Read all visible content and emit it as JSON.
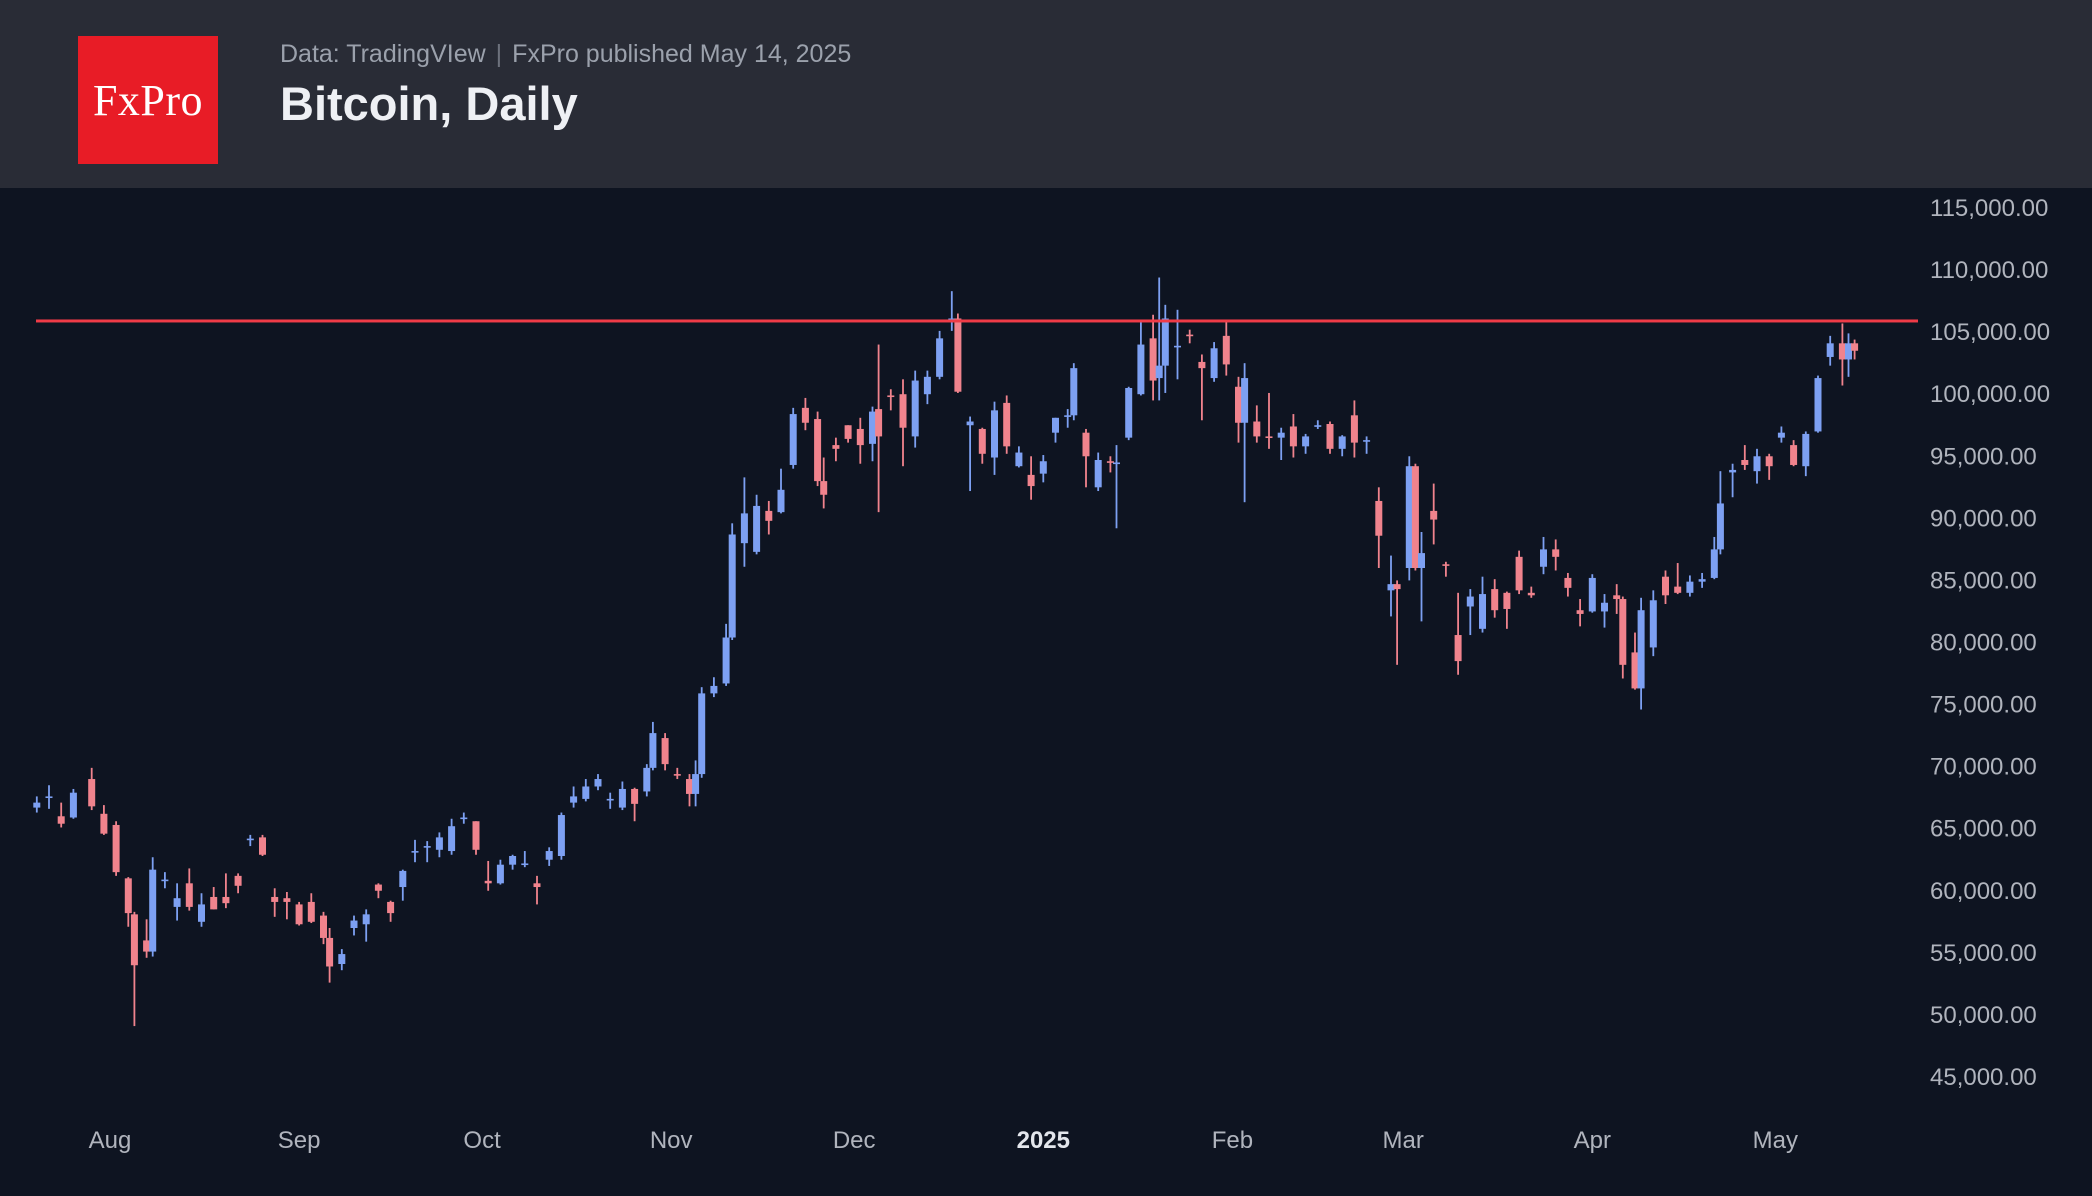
{
  "header": {
    "logo_text": "FxPro",
    "source_prefix": "Data: TradingVIew",
    "separator": "|",
    "published": "FxPro published May 14, 2025",
    "title": "Bitcoin, Daily"
  },
  "colors": {
    "header_bg": "#292c36",
    "chart_bg": "#0e1421",
    "logo_bg": "#e81c26",
    "up_candle": "#7da0f2",
    "down_candle": "#f0838d",
    "resistance_line": "#ef3b47",
    "axis_text": "#b0b4bd",
    "year_tick_text": "#e3e6ec",
    "title_text": "#eef0f4",
    "subtitle_text": "#9ba1ac"
  },
  "chart_data": {
    "type": "candlestick",
    "title": "Bitcoin, Daily",
    "instrument": "Bitcoin",
    "timeframe": "Daily",
    "grid": false,
    "legend_position": "none",
    "x_range": [
      "2024-07-20",
      "2025-05-14"
    ],
    "y_axis": {
      "min": 45000,
      "max": 115000,
      "step": 5000,
      "tick_labels": [
        "115,000.00",
        "110,000.00",
        "105,000.00",
        "100,000.00",
        "95,000.00",
        "90,000.00",
        "85,000.00",
        "80,000.00",
        "75,000.00",
        "70,000.00",
        "65,000.00",
        "60,000.00",
        "55,000.00",
        "50,000.00",
        "45,000.00"
      ]
    },
    "x_axis": {
      "ticks": [
        {
          "label": "Aug",
          "date": "2024-08-01",
          "bold": false
        },
        {
          "label": "Sep",
          "date": "2024-09-01",
          "bold": false
        },
        {
          "label": "Oct",
          "date": "2024-10-01",
          "bold": false
        },
        {
          "label": "Nov",
          "date": "2024-11-01",
          "bold": false
        },
        {
          "label": "Dec",
          "date": "2024-12-01",
          "bold": false
        },
        {
          "label": "2025",
          "date": "2025-01-01",
          "bold": true
        },
        {
          "label": "Feb",
          "date": "2025-02-01",
          "bold": false
        },
        {
          "label": "Mar",
          "date": "2025-03-01",
          "bold": false
        },
        {
          "label": "Apr",
          "date": "2025-04-01",
          "bold": false
        },
        {
          "label": "May",
          "date": "2025-05-01",
          "bold": false
        }
      ]
    },
    "resistance_line": {
      "value": 105900,
      "style": "solid"
    },
    "columns": [
      "date",
      "open",
      "high",
      "low",
      "close"
    ],
    "candles": [
      [
        "2024-07-20",
        66700,
        67600,
        66300,
        67100
      ],
      [
        "2024-07-22",
        67600,
        68500,
        66600,
        67600
      ],
      [
        "2024-07-24",
        66000,
        67100,
        65100,
        65400
      ],
      [
        "2024-07-26",
        65900,
        68200,
        65800,
        67900
      ],
      [
        "2024-07-29",
        69000,
        69900,
        66500,
        66800
      ],
      [
        "2024-07-31",
        66200,
        66900,
        64500,
        64600
      ],
      [
        "2024-08-02",
        65300,
        65600,
        61200,
        61500
      ],
      [
        "2024-08-04",
        61000,
        61100,
        57100,
        58200
      ],
      [
        "2024-08-05",
        58100,
        58300,
        49100,
        54000
      ],
      [
        "2024-08-07",
        56000,
        57700,
        54600,
        55100
      ],
      [
        "2024-08-08",
        55100,
        62700,
        54700,
        61700
      ],
      [
        "2024-08-10",
        60900,
        61500,
        60200,
        60900
      ],
      [
        "2024-08-12",
        58700,
        60600,
        57600,
        59400
      ],
      [
        "2024-08-14",
        60600,
        61800,
        58400,
        58700
      ],
      [
        "2024-08-16",
        57500,
        59800,
        57100,
        58900
      ],
      [
        "2024-08-18",
        59500,
        60300,
        58500,
        58500
      ],
      [
        "2024-08-20",
        59500,
        61400,
        58600,
        59000
      ],
      [
        "2024-08-22",
        61200,
        61400,
        59800,
        60400
      ],
      [
        "2024-08-24",
        64100,
        64500,
        63600,
        64200
      ],
      [
        "2024-08-26",
        64300,
        64500,
        62800,
        62900
      ],
      [
        "2024-08-28",
        59500,
        60200,
        57900,
        59100
      ],
      [
        "2024-08-30",
        59400,
        59900,
        57700,
        59100
      ],
      [
        "2024-09-01",
        58900,
        59100,
        57200,
        57300
      ],
      [
        "2024-09-03",
        59100,
        59800,
        57400,
        57500
      ],
      [
        "2024-09-05",
        58000,
        58300,
        55700,
        56200
      ],
      [
        "2024-09-06",
        56200,
        57000,
        52600,
        53900
      ],
      [
        "2024-09-08",
        54100,
        55300,
        53600,
        54900
      ],
      [
        "2024-09-10",
        57000,
        58000,
        56400,
        57600
      ],
      [
        "2024-09-12",
        57300,
        58500,
        55900,
        58100
      ],
      [
        "2024-09-14",
        60500,
        60600,
        59400,
        60000
      ],
      [
        "2024-09-16",
        59100,
        59200,
        57500,
        58200
      ],
      [
        "2024-09-18",
        60300,
        61700,
        59200,
        61600
      ],
      [
        "2024-09-20",
        63200,
        64100,
        62300,
        63200
      ],
      [
        "2024-09-22",
        63600,
        64000,
        62300,
        63600
      ],
      [
        "2024-09-24",
        63300,
        64700,
        62700,
        64300
      ],
      [
        "2024-09-26",
        63200,
        65800,
        62900,
        65200
      ],
      [
        "2024-09-28",
        65800,
        66300,
        65400,
        65900
      ],
      [
        "2024-09-30",
        65600,
        65600,
        62900,
        63300
      ],
      [
        "2024-10-02",
        60800,
        62400,
        60000,
        60600
      ],
      [
        "2024-10-04",
        60600,
        62500,
        60500,
        62100
      ],
      [
        "2024-10-06",
        62100,
        62900,
        61700,
        62800
      ],
      [
        "2024-10-08",
        62200,
        63200,
        61900,
        62200
      ],
      [
        "2024-10-10",
        60600,
        61200,
        58900,
        60300
      ],
      [
        "2024-10-12",
        62500,
        63500,
        62000,
        63200
      ],
      [
        "2024-10-14",
        62800,
        66300,
        62500,
        66100
      ],
      [
        "2024-10-16",
        67100,
        68400,
        66700,
        67600
      ],
      [
        "2024-10-18",
        67400,
        69000,
        67200,
        68400
      ],
      [
        "2024-10-20",
        68400,
        69400,
        68100,
        69000
      ],
      [
        "2024-10-22",
        67400,
        67900,
        66600,
        67400
      ],
      [
        "2024-10-24",
        66700,
        68800,
        66500,
        68200
      ],
      [
        "2024-10-26",
        68200,
        68300,
        65600,
        67000
      ],
      [
        "2024-10-28",
        68000,
        70200,
        67600,
        69900
      ],
      [
        "2024-10-29",
        69900,
        73600,
        69700,
        72700
      ],
      [
        "2024-10-31",
        72300,
        72700,
        69700,
        70200
      ],
      [
        "2024-11-02",
        69400,
        69900,
        69000,
        69300
      ],
      [
        "2024-11-04",
        69000,
        69400,
        66800,
        67800
      ],
      [
        "2024-11-05",
        67800,
        70500,
        66800,
        69400
      ],
      [
        "2024-11-06",
        69400,
        76400,
        69100,
        75900
      ],
      [
        "2024-11-08",
        75900,
        77200,
        75600,
        76500
      ],
      [
        "2024-11-10",
        76700,
        81500,
        76500,
        80400
      ],
      [
        "2024-11-11",
        80400,
        89600,
        80200,
        88700
      ],
      [
        "2024-11-13",
        88000,
        93300,
        86100,
        90400
      ],
      [
        "2024-11-15",
        87300,
        91900,
        87100,
        91000
      ],
      [
        "2024-11-17",
        90600,
        91400,
        88700,
        89800
      ],
      [
        "2024-11-19",
        90500,
        94000,
        90400,
        92300
      ],
      [
        "2024-11-21",
        94300,
        98900,
        94000,
        98400
      ],
      [
        "2024-11-23",
        98900,
        99700,
        97100,
        97700
      ],
      [
        "2024-11-25",
        98000,
        98600,
        92600,
        93000
      ],
      [
        "2024-11-26",
        93000,
        94900,
        90800,
        91900
      ],
      [
        "2024-11-28",
        95900,
        96500,
        94600,
        95600
      ],
      [
        "2024-11-30",
        97500,
        97500,
        96100,
        96400
      ],
      [
        "2024-12-02",
        97200,
        98100,
        94400,
        95900
      ],
      [
        "2024-12-04",
        96000,
        99000,
        94600,
        98600
      ],
      [
        "2024-12-05",
        98800,
        104000,
        90500,
        96600
      ],
      [
        "2024-12-07",
        99900,
        100400,
        98700,
        99800
      ],
      [
        "2024-12-09",
        100000,
        101200,
        94200,
        97300
      ],
      [
        "2024-12-11",
        96600,
        101900,
        95700,
        101100
      ],
      [
        "2024-12-13",
        100000,
        101900,
        99200,
        101400
      ],
      [
        "2024-12-15",
        101400,
        105100,
        101200,
        104500
      ],
      [
        "2024-12-17",
        106100,
        108300,
        105100,
        106100
      ],
      [
        "2024-12-18",
        106100,
        106500,
        100100,
        100200
      ],
      [
        "2024-12-20",
        97500,
        98200,
        92200,
        97800
      ],
      [
        "2024-12-22",
        97200,
        97300,
        94400,
        95200
      ],
      [
        "2024-12-24",
        94900,
        99400,
        93500,
        98700
      ],
      [
        "2024-12-26",
        99300,
        99900,
        95200,
        95800
      ],
      [
        "2024-12-28",
        94200,
        95800,
        94100,
        95300
      ],
      [
        "2024-12-30",
        93500,
        95000,
        91500,
        92600
      ],
      [
        "2025-01-01",
        93600,
        95100,
        92900,
        94600
      ],
      [
        "2025-01-03",
        96900,
        98100,
        96100,
        98100
      ],
      [
        "2025-01-05",
        98200,
        98800,
        97300,
        98300
      ],
      [
        "2025-01-06",
        98300,
        102500,
        97900,
        102100
      ],
      [
        "2025-01-08",
        96900,
        97200,
        92500,
        95000
      ],
      [
        "2025-01-10",
        92500,
        95300,
        92200,
        94700
      ],
      [
        "2025-01-12",
        94600,
        95000,
        93700,
        94500
      ],
      [
        "2025-01-13",
        94500,
        95900,
        89200,
        94500
      ],
      [
        "2025-01-15",
        96500,
        100600,
        96300,
        100500
      ],
      [
        "2025-01-17",
        100000,
        105800,
        99900,
        104000
      ],
      [
        "2025-01-19",
        104500,
        106400,
        99500,
        101100
      ],
      [
        "2025-01-20",
        101300,
        109400,
        99500,
        102300
      ],
      [
        "2025-01-21",
        102300,
        107200,
        100100,
        106100
      ],
      [
        "2025-01-23",
        103900,
        106800,
        101200,
        103900
      ],
      [
        "2025-01-25",
        104800,
        105200,
        104100,
        104700
      ],
      [
        "2025-01-27",
        102600,
        103200,
        97900,
        102100
      ],
      [
        "2025-01-29",
        101300,
        104200,
        101000,
        103700
      ],
      [
        "2025-01-31",
        104700,
        106000,
        101500,
        102400
      ],
      [
        "2025-02-02",
        100600,
        101400,
        96100,
        97700
      ],
      [
        "2025-02-03",
        97700,
        102500,
        91300,
        101300
      ],
      [
        "2025-02-05",
        97800,
        99100,
        96100,
        96600
      ],
      [
        "2025-02-07",
        96600,
        100100,
        95600,
        96500
      ],
      [
        "2025-02-09",
        96500,
        97300,
        94700,
        96900
      ],
      [
        "2025-02-11",
        97400,
        98400,
        94900,
        95800
      ],
      [
        "2025-02-13",
        95800,
        96800,
        95200,
        96600
      ],
      [
        "2025-02-15",
        97500,
        97900,
        97200,
        97500
      ],
      [
        "2025-02-17",
        97600,
        97800,
        95200,
        95600
      ],
      [
        "2025-02-19",
        95600,
        96700,
        95000,
        96600
      ],
      [
        "2025-02-21",
        98300,
        99500,
        94900,
        96100
      ],
      [
        "2025-02-23",
        96300,
        96600,
        95200,
        96300
      ],
      [
        "2025-02-25",
        91400,
        92500,
        86000,
        88600
      ],
      [
        "2025-02-27",
        84200,
        87000,
        82100,
        84700
      ],
      [
        "2025-02-28",
        84700,
        85000,
        78200,
        84300
      ],
      [
        "2025-03-02",
        86000,
        95000,
        85000,
        94200
      ],
      [
        "2025-03-03",
        94200,
        94400,
        85800,
        86000
      ],
      [
        "2025-03-04",
        86000,
        88900,
        81700,
        87200
      ],
      [
        "2025-03-06",
        90600,
        92800,
        87900,
        89900
      ],
      [
        "2025-03-08",
        86300,
        86500,
        85300,
        86200
      ],
      [
        "2025-03-10",
        80600,
        84000,
        77400,
        78500
      ],
      [
        "2025-03-12",
        82900,
        84300,
        80600,
        83700
      ],
      [
        "2025-03-14",
        81100,
        85300,
        80800,
        83900
      ],
      [
        "2025-03-16",
        84300,
        85100,
        82000,
        82600
      ],
      [
        "2025-03-18",
        84000,
        84100,
        81100,
        82700
      ],
      [
        "2025-03-20",
        86900,
        87400,
        83900,
        84200
      ],
      [
        "2025-03-22",
        84000,
        84500,
        83600,
        83800
      ],
      [
        "2025-03-24",
        86100,
        88500,
        85500,
        87500
      ],
      [
        "2025-03-26",
        87500,
        88300,
        85800,
        86900
      ],
      [
        "2025-03-28",
        85200,
        85600,
        83700,
        84400
      ],
      [
        "2025-03-30",
        82600,
        83500,
        81300,
        82300
      ],
      [
        "2025-04-01",
        82500,
        85500,
        82400,
        85200
      ],
      [
        "2025-04-03",
        82500,
        83900,
        81200,
        83200
      ],
      [
        "2025-04-05",
        83800,
        84700,
        82300,
        83500
      ],
      [
        "2025-04-06",
        83500,
        83700,
        77100,
        78200
      ],
      [
        "2025-04-08",
        79200,
        80800,
        76200,
        76300
      ],
      [
        "2025-04-09",
        76300,
        83600,
        74600,
        82600
      ],
      [
        "2025-04-11",
        79600,
        84200,
        78900,
        83400
      ],
      [
        "2025-04-13",
        85300,
        85800,
        83100,
        83800
      ],
      [
        "2025-04-15",
        84500,
        86400,
        83900,
        84000
      ],
      [
        "2025-04-17",
        84000,
        85400,
        83700,
        84900
      ],
      [
        "2025-04-19",
        84900,
        85600,
        84400,
        85100
      ],
      [
        "2025-04-21",
        85200,
        88500,
        85100,
        87500
      ],
      [
        "2025-04-22",
        87500,
        93800,
        87100,
        91200
      ],
      [
        "2025-04-24",
        93700,
        94400,
        91700,
        93900
      ],
      [
        "2025-04-26",
        94700,
        95900,
        93900,
        94300
      ],
      [
        "2025-04-28",
        93800,
        95600,
        92800,
        95000
      ],
      [
        "2025-04-30",
        95000,
        95200,
        93100,
        94200
      ],
      [
        "2025-05-02",
        96500,
        97400,
        96100,
        96900
      ],
      [
        "2025-05-04",
        95900,
        96300,
        94200,
        94300
      ],
      [
        "2025-05-06",
        94200,
        97000,
        93400,
        96800
      ],
      [
        "2025-05-08",
        97000,
        101500,
        96900,
        101300
      ],
      [
        "2025-05-10",
        103000,
        104700,
        102300,
        104100
      ],
      [
        "2025-05-12",
        104100,
        105700,
        100700,
        102800
      ],
      [
        "2025-05-13",
        102800,
        104900,
        101400,
        104100
      ],
      [
        "2025-05-14",
        104100,
        104400,
        102800,
        103500
      ]
    ]
  }
}
